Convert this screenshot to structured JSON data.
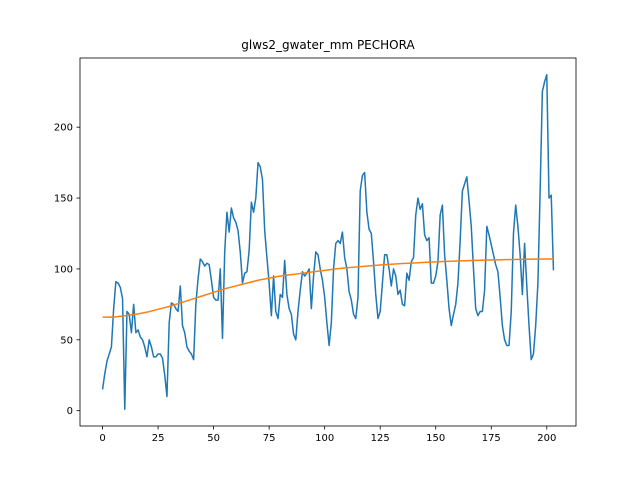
{
  "chart_data": {
    "type": "line",
    "title": "glws2_gwater_mm PECHORA",
    "x": [
      0,
      1,
      2,
      3,
      4,
      5,
      6,
      7,
      8,
      9,
      10,
      11,
      12,
      13,
      14,
      15,
      16,
      17,
      18,
      19,
      20,
      21,
      22,
      23,
      24,
      25,
      26,
      27,
      28,
      29,
      30,
      31,
      32,
      33,
      34,
      35,
      36,
      37,
      38,
      39,
      40,
      41,
      42,
      43,
      44,
      45,
      46,
      47,
      48,
      49,
      50,
      51,
      52,
      53,
      54,
      55,
      56,
      57,
      58,
      59,
      60,
      61,
      62,
      63,
      64,
      65,
      66,
      67,
      68,
      69,
      70,
      71,
      72,
      73,
      74,
      75,
      76,
      77,
      78,
      79,
      80,
      81,
      82,
      83,
      84,
      85,
      86,
      87,
      88,
      89,
      90,
      91,
      92,
      93,
      94,
      95,
      96,
      97,
      98,
      99,
      100,
      101,
      102,
      103,
      104,
      105,
      106,
      107,
      108,
      109,
      110,
      111,
      112,
      113,
      114,
      115,
      116,
      117,
      118,
      119,
      120,
      121,
      122,
      123,
      124,
      125,
      126,
      127,
      128,
      129,
      130,
      131,
      132,
      133,
      134,
      135,
      136,
      137,
      138,
      139,
      140,
      141,
      142,
      143,
      144,
      145,
      146,
      147,
      148,
      149,
      150,
      151,
      152,
      153,
      154,
      155,
      156,
      157,
      158,
      159,
      160,
      161,
      162,
      163,
      164,
      165,
      166,
      167,
      168,
      169,
      170,
      171,
      172,
      173,
      174,
      175,
      176,
      177,
      178,
      179,
      180,
      181,
      182,
      183,
      184,
      185,
      186,
      187,
      188,
      189,
      190,
      191,
      192,
      193,
      194,
      195,
      196,
      197,
      198,
      199,
      200,
      201,
      202,
      203
    ],
    "series": [
      {
        "color": "#1f77b4",
        "values": [
          15,
          26,
          35,
          40,
          45,
          72,
          91,
          90,
          87,
          79,
          1,
          70,
          68,
          55,
          75,
          55,
          57,
          52,
          50,
          45,
          38,
          50,
          45,
          38,
          38,
          40,
          40,
          37,
          25,
          10,
          62,
          76,
          75,
          72,
          70,
          88,
          60,
          55,
          45,
          42,
          40,
          36,
          75,
          93,
          107,
          105,
          102,
          104,
          103,
          92,
          80,
          78,
          78,
          100,
          51,
          112,
          140,
          126,
          143,
          136,
          133,
          127,
          112,
          90,
          97,
          98,
          113,
          147,
          140,
          150,
          175,
          172,
          163,
          127,
          108,
          90,
          67,
          95,
          70,
          65,
          82,
          80,
          106,
          82,
          72,
          68,
          54,
          50,
          70,
          85,
          98,
          95,
          97,
          100,
          72,
          95,
          112,
          110,
          100,
          92,
          80,
          62,
          46,
          62,
          100,
          118,
          120,
          118,
          126,
          108,
          100,
          84,
          78,
          68,
          65,
          80,
          155,
          166,
          168,
          140,
          128,
          125,
          105,
          82,
          65,
          70,
          90,
          110,
          110,
          100,
          88,
          100,
          95,
          82,
          85,
          75,
          74,
          97,
          92,
          105,
          108,
          138,
          150,
          142,
          146,
          124,
          120,
          122,
          90,
          90,
          95,
          105,
          138,
          145,
          110,
          92,
          72,
          60,
          68,
          75,
          90,
          120,
          155,
          160,
          165,
          148,
          130,
          100,
          72,
          67,
          70,
          70,
          85,
          130,
          124,
          117,
          110,
          103,
          98,
          80,
          60,
          50,
          46,
          46,
          70,
          125,
          145,
          130,
          110,
          82,
          118,
          88,
          60,
          36,
          40,
          60,
          90,
          155,
          225,
          232,
          237,
          150,
          152,
          99
        ]
      },
      {
        "color": "#ff7f0e",
        "x": [
          0,
          5,
          10,
          15,
          20,
          25,
          30,
          35,
          40,
          45,
          50,
          55,
          60,
          65,
          70,
          75,
          80,
          85,
          90,
          95,
          100,
          105,
          110,
          115,
          120,
          125,
          130,
          135,
          140,
          145,
          150,
          155,
          160,
          165,
          170,
          175,
          180,
          185,
          190,
          195,
          200,
          203
        ],
        "values": [
          66,
          66,
          67,
          68,
          69.5,
          71.5,
          73.5,
          76,
          78.5,
          81,
          83.5,
          86,
          88,
          90,
          92,
          93.5,
          95,
          96,
          97,
          98,
          99,
          100,
          100.8,
          101.5,
          102.2,
          102.8,
          103.3,
          103.8,
          104.2,
          104.6,
          105,
          105.3,
          105.6,
          105.9,
          106.1,
          106.3,
          106.5,
          106.7,
          106.8,
          106.9,
          107,
          107
        ]
      }
    ],
    "xlim": [
      -10.15,
      213.15
    ],
    "ylim": [
      -10.8,
      248.8
    ],
    "xticks": [
      0,
      25,
      50,
      75,
      100,
      125,
      150,
      175,
      200
    ],
    "yticks": [
      0,
      50,
      100,
      150,
      200
    ],
    "grid": false
  }
}
